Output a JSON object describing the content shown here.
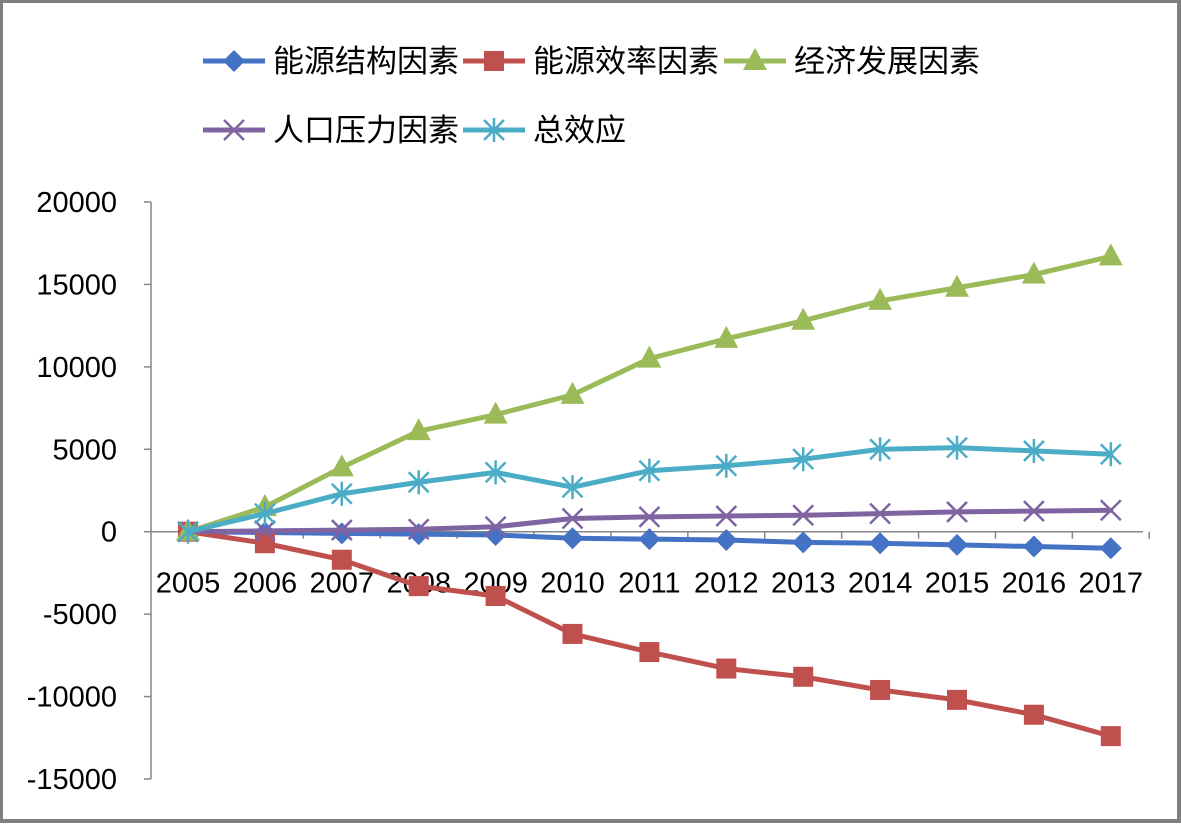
{
  "chart_data": {
    "type": "line",
    "title": "",
    "xlabel": "",
    "ylabel": "",
    "categories": [
      "2005",
      "2006",
      "2007",
      "2008",
      "2009",
      "2010",
      "2011",
      "2012",
      "2013",
      "2014",
      "2015",
      "2016",
      "2017"
    ],
    "ylim": [
      -15000,
      20000
    ],
    "yticks": [
      20000,
      15000,
      10000,
      5000,
      0,
      -5000,
      -10000,
      -15000
    ],
    "grid": false,
    "legend_position": "top",
    "series": [
      {
        "name": "能源结构因素",
        "color": "#4472C4",
        "marker": "diamond",
        "values": [
          0,
          -50,
          -100,
          -150,
          -200,
          -400,
          -450,
          -500,
          -650,
          -700,
          -800,
          -900,
          -1000
        ]
      },
      {
        "name": "能源效率因素",
        "color": "#C0504D",
        "marker": "square",
        "values": [
          0,
          -700,
          -1700,
          -3300,
          -3900,
          -6200,
          -7300,
          -8300,
          -8800,
          -9600,
          -10200,
          -11100,
          -12400
        ]
      },
      {
        "name": "经济发展因素",
        "color": "#9BBB59",
        "marker": "triangle",
        "values": [
          0,
          1500,
          3900,
          6100,
          7100,
          8300,
          10500,
          11700,
          12800,
          14000,
          14800,
          15600,
          16700
        ]
      },
      {
        "name": "人口压力因素",
        "color": "#8064A2",
        "marker": "x",
        "values": [
          0,
          50,
          100,
          150,
          300,
          800,
          900,
          950,
          1000,
          1100,
          1200,
          1250,
          1300
        ]
      },
      {
        "name": "总效应",
        "color": "#4BACC6",
        "marker": "star",
        "values": [
          0,
          1100,
          2300,
          3000,
          3600,
          2700,
          3700,
          4000,
          4400,
          5000,
          5100,
          4900,
          4700
        ]
      }
    ]
  }
}
